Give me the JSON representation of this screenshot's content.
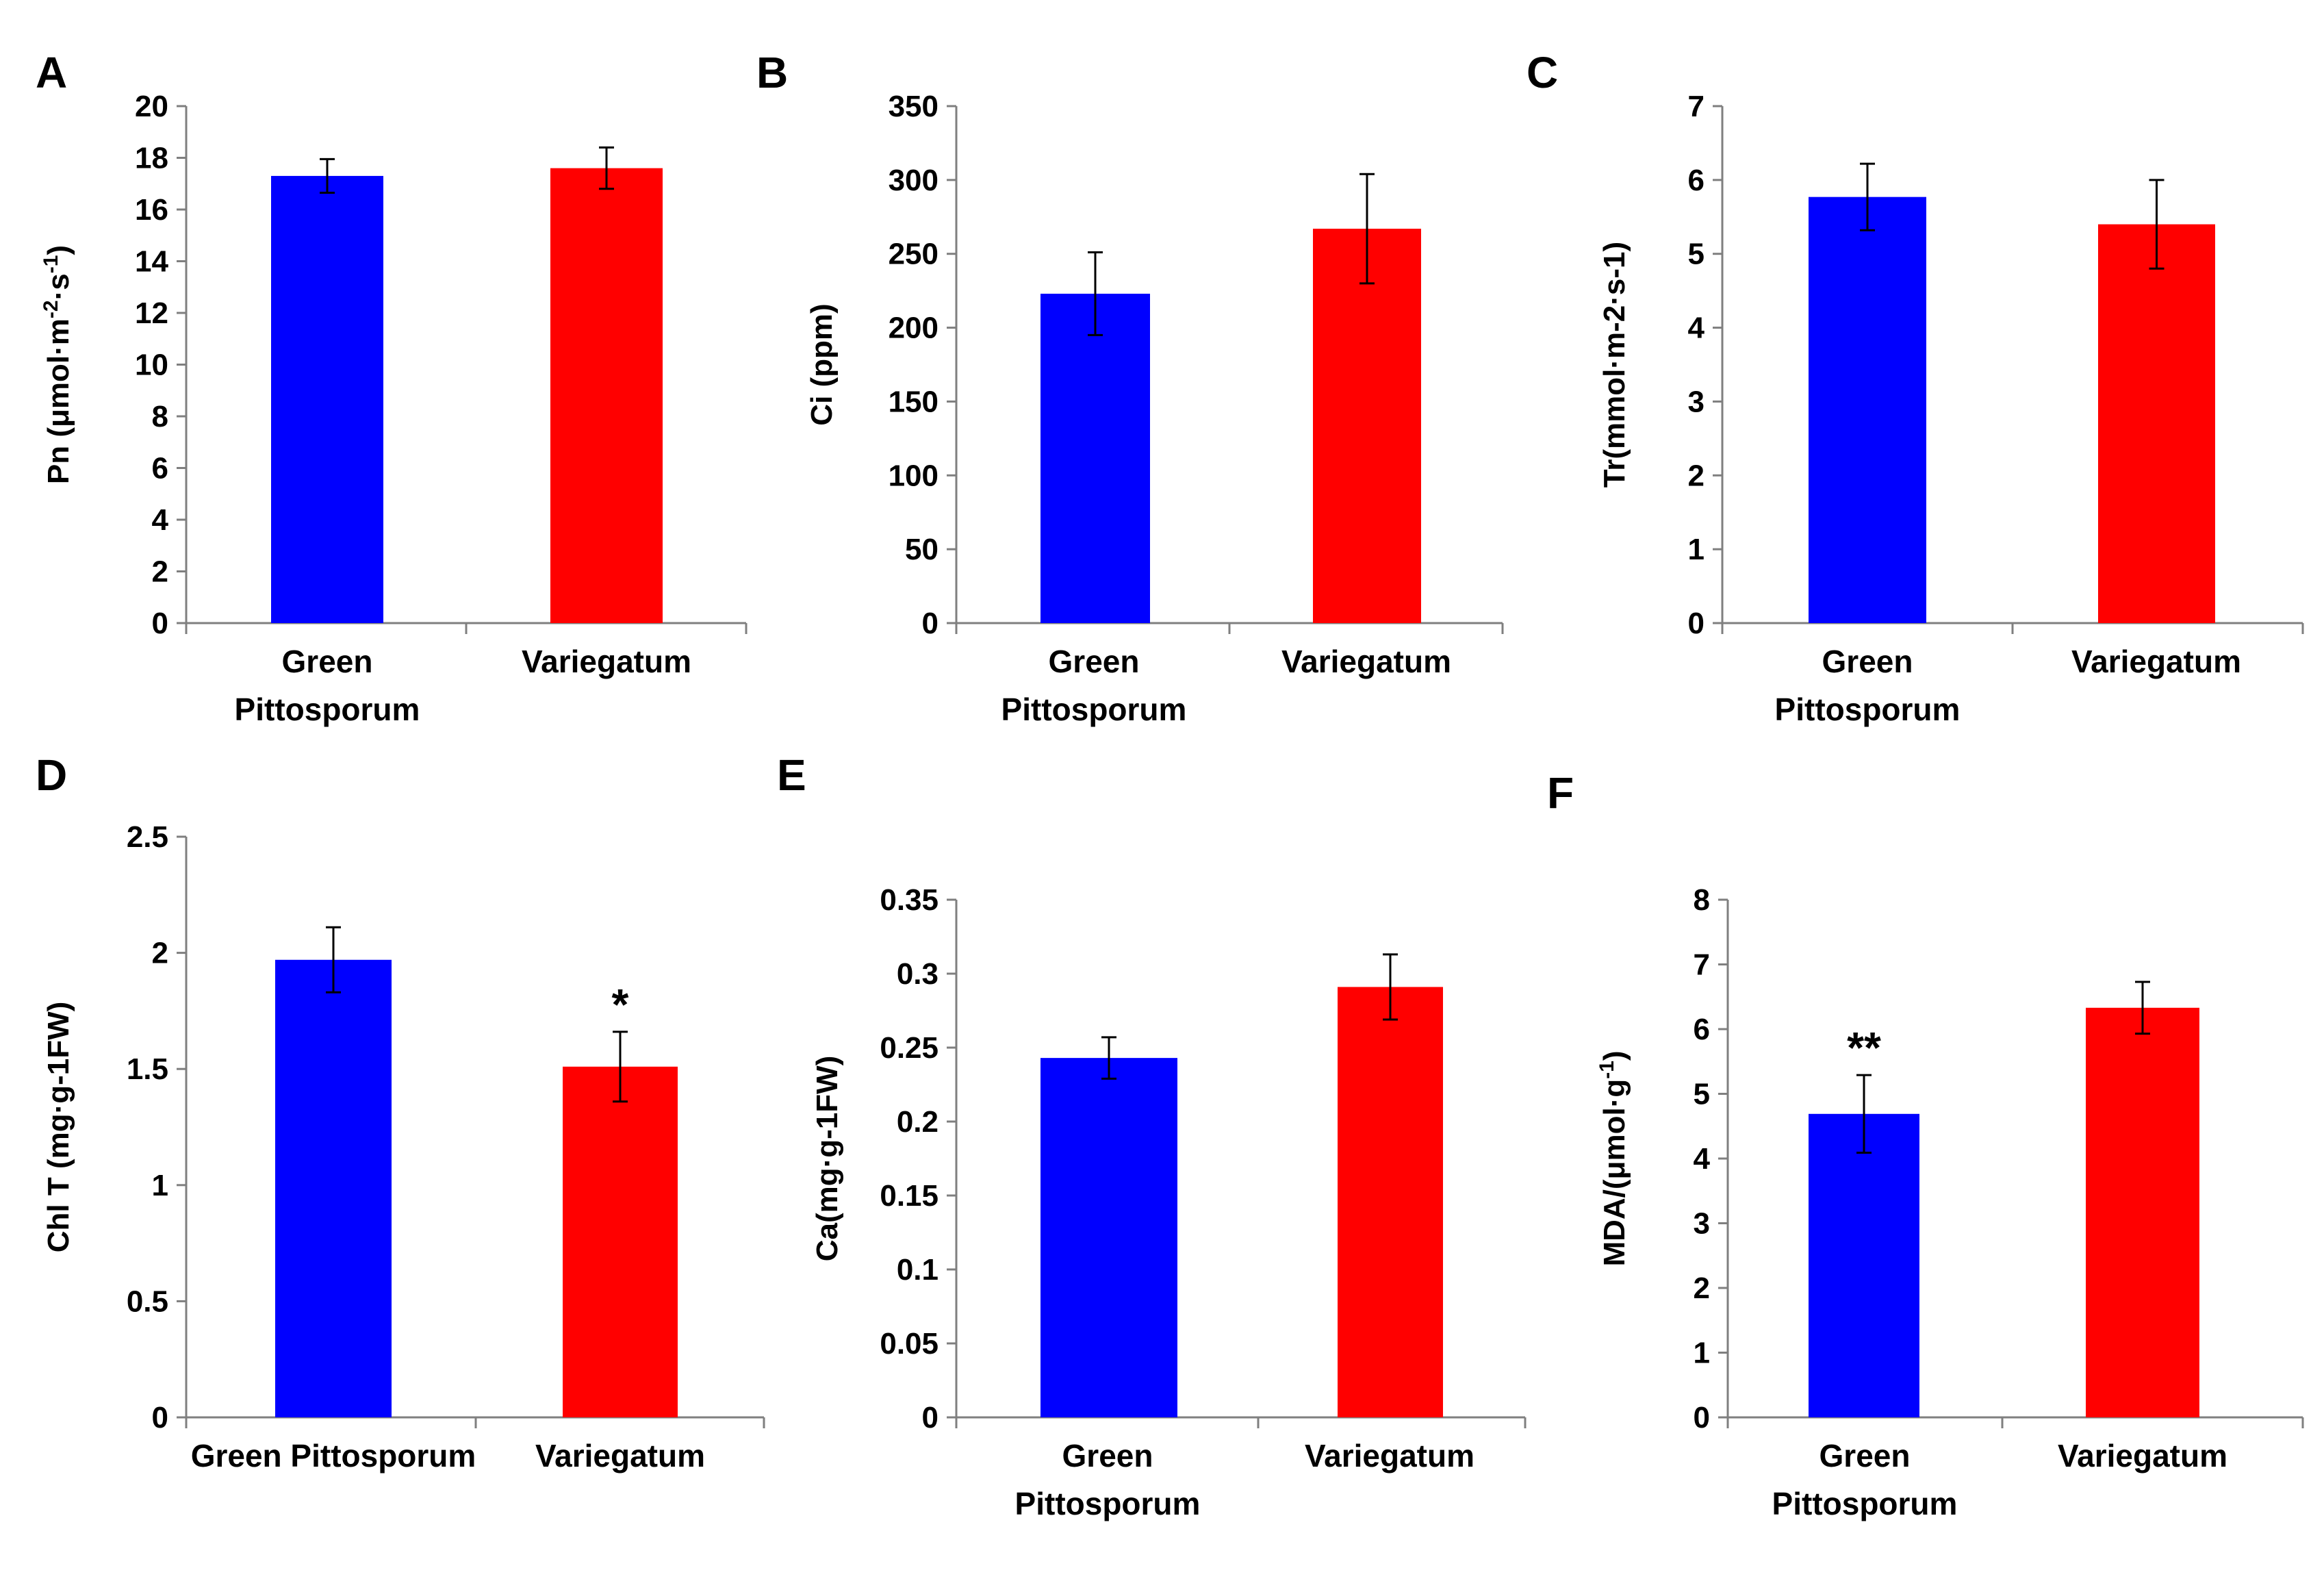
{
  "figure": {
    "panels": [
      {
        "panel_label": "A",
        "ylabel_parts": [
          [
            "Pn (μmol·m",
            false
          ],
          [
            "-2",
            true
          ],
          [
            "·s",
            false
          ],
          [
            "-1",
            true
          ],
          [
            ")",
            false
          ]
        ]
      },
      {
        "panel_label": "B",
        "ylabel_parts": [
          [
            "Ci (ppm)",
            false
          ]
        ]
      },
      {
        "panel_label": "C",
        "ylabel_parts": [
          [
            "Tr(mmol·m-2·s-1)",
            false
          ]
        ]
      },
      {
        "panel_label": "D",
        "ylabel_parts": [
          [
            "Chl T (mg·g-1FW)",
            false
          ]
        ]
      },
      {
        "panel_label": "E",
        "ylabel_parts": [
          [
            "Ca(mg·g-1FW)",
            false
          ]
        ]
      },
      {
        "panel_label": "F",
        "ylabel_parts": [
          [
            "MDA/(μmol·g",
            false
          ],
          [
            "-1",
            true
          ],
          [
            ")",
            false
          ]
        ]
      }
    ]
  },
  "colors": {
    "green_pittosporum": "#0000FF",
    "variegatum": "#FF0000",
    "axis": "#7F7F7F",
    "error_bar": "#000000"
  },
  "chart_data": [
    {
      "type": "bar",
      "panel": "A",
      "categories": [
        "Green Pittosporum",
        "Variegatum"
      ],
      "category_label_lines": [
        [
          "Green",
          "Pittosporum"
        ],
        [
          "Variegatum"
        ]
      ],
      "values": [
        17.3,
        17.6
      ],
      "errors": [
        0.65,
        0.8
      ],
      "significance": [
        "",
        ""
      ],
      "ylim": [
        0,
        20
      ],
      "yticks": [
        0,
        2,
        4,
        6,
        8,
        10,
        12,
        14,
        16,
        18,
        20
      ],
      "ytick_labels": [
        "0",
        "2",
        "4",
        "6",
        "8",
        "10",
        "12",
        "14",
        "16",
        "18",
        "20"
      ],
      "ylabel": "Pn (μmol·m-2·s-1)",
      "xlabel": "",
      "grid": false,
      "legend": "none"
    },
    {
      "type": "bar",
      "panel": "B",
      "categories": [
        "Green Pittosporum",
        "Variegatum"
      ],
      "category_label_lines": [
        [
          "Green",
          "Pittosporum"
        ],
        [
          "Variegatum"
        ]
      ],
      "values": [
        223,
        267
      ],
      "errors": [
        28,
        37
      ],
      "significance": [
        "",
        ""
      ],
      "ylim": [
        0,
        350
      ],
      "yticks": [
        0,
        50,
        100,
        150,
        200,
        250,
        300,
        350
      ],
      "ytick_labels": [
        "0",
        "50",
        "100",
        "150",
        "200",
        "250",
        "300",
        "350"
      ],
      "ylabel": "Ci (ppm)",
      "xlabel": "",
      "grid": false,
      "legend": "none"
    },
    {
      "type": "bar",
      "panel": "C",
      "categories": [
        "Green Pittosporum",
        "Variegatum"
      ],
      "category_label_lines": [
        [
          "Green",
          "Pittosporum"
        ],
        [
          "Variegatum"
        ]
      ],
      "values": [
        5.77,
        5.4
      ],
      "errors": [
        0.45,
        0.6
      ],
      "significance": [
        "",
        ""
      ],
      "ylim": [
        0,
        7
      ],
      "yticks": [
        0,
        1,
        2,
        3,
        4,
        5,
        6,
        7
      ],
      "ytick_labels": [
        "0",
        "1",
        "2",
        "3",
        "4",
        "5",
        "6",
        "7"
      ],
      "ylabel": "Tr(mmol·m-2·s-1)",
      "xlabel": "",
      "grid": false,
      "legend": "none"
    },
    {
      "type": "bar",
      "panel": "D",
      "categories": [
        "Green Pittosporum",
        "Variegatum"
      ],
      "category_label_lines": [
        [
          "Green Pittosporum"
        ],
        [
          "Variegatum"
        ]
      ],
      "values": [
        1.97,
        1.51
      ],
      "errors": [
        0.14,
        0.15
      ],
      "significance": [
        "",
        "*"
      ],
      "ylim": [
        0,
        2.5
      ],
      "yticks": [
        0,
        0.5,
        1,
        1.5,
        2,
        2.5
      ],
      "ytick_labels": [
        "0",
        "0.5",
        "1",
        "1.5",
        "2",
        "2.5"
      ],
      "ylabel": "Chl T (mg·g-1FW)",
      "xlabel": "",
      "grid": false,
      "legend": "none"
    },
    {
      "type": "bar",
      "panel": "E",
      "categories": [
        "Green Pittosporum",
        "Variegatum"
      ],
      "category_label_lines": [
        [
          "Green",
          "Pittosporum"
        ],
        [
          "Variegatum"
        ]
      ],
      "values": [
        0.243,
        0.291
      ],
      "errors": [
        0.014,
        0.022
      ],
      "significance": [
        "",
        ""
      ],
      "ylim": [
        0,
        0.35
      ],
      "yticks": [
        0,
        0.05,
        0.1,
        0.15,
        0.2,
        0.25,
        0.3,
        0.35
      ],
      "ytick_labels": [
        "0",
        "0.05",
        "0.1",
        "0.15",
        "0.2",
        "0.25",
        "0.3",
        "0.35"
      ],
      "ylabel": "Ca(mg·g-1FW)",
      "xlabel": "",
      "grid": false,
      "legend": "none"
    },
    {
      "type": "bar",
      "panel": "F",
      "categories": [
        "Green Pittosporum",
        "Variegatum"
      ],
      "category_label_lines": [
        [
          "Green",
          "Pittosporum"
        ],
        [
          "Variegatum"
        ]
      ],
      "values": [
        4.69,
        6.33
      ],
      "errors": [
        0.6,
        0.4
      ],
      "significance": [
        "**",
        ""
      ],
      "ylim": [
        0,
        8
      ],
      "yticks": [
        0,
        1,
        2,
        3,
        4,
        5,
        6,
        7,
        8
      ],
      "ytick_labels": [
        "0",
        "1",
        "2",
        "3",
        "4",
        "5",
        "6",
        "7",
        "8"
      ],
      "ylabel": "MDA/(μmol·g-1)",
      "xlabel": "",
      "grid": false,
      "legend": "none"
    }
  ]
}
